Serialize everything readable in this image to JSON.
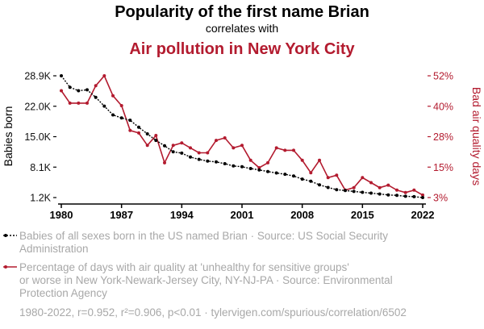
{
  "chart_data": {
    "type": "line",
    "title": "Popularity of the first name Brian",
    "subtitle": "correlates with",
    "title2": "Air pollution in New York City",
    "x": [
      1980,
      1981,
      1982,
      1983,
      1984,
      1985,
      1986,
      1987,
      1988,
      1989,
      1990,
      1991,
      1992,
      1993,
      1994,
      1995,
      1996,
      1997,
      1998,
      1999,
      2000,
      2001,
      2002,
      2003,
      2004,
      2005,
      2006,
      2007,
      2008,
      2009,
      2010,
      2011,
      2012,
      2013,
      2014,
      2015,
      2016,
      2017,
      2018,
      2019,
      2020,
      2021,
      2022
    ],
    "xlim": [
      1980,
      2022
    ],
    "xticks": [
      1980,
      1987,
      1994,
      2001,
      2008,
      2015,
      2022
    ],
    "series": [
      {
        "name": "Babies of all sexes born in the US named Brian",
        "axis": "left",
        "color": "#000000",
        "style": "dotted",
        "values": [
          28900,
          26300,
          25500,
          25700,
          24000,
          22000,
          20000,
          19300,
          18800,
          17200,
          15700,
          14200,
          13000,
          11600,
          11300,
          10400,
          9900,
          9500,
          9300,
          8900,
          8400,
          8200,
          7800,
          7500,
          7100,
          6800,
          6500,
          6100,
          5400,
          4900,
          4100,
          3500,
          3000,
          2800,
          2600,
          2400,
          2200,
          2000,
          1800,
          1700,
          1500,
          1400,
          1200
        ]
      },
      {
        "name": "Percentage of days with air quality at 'unhealthy for sensitive groups' or worse in New York-Newark-Jersey City, NY-NJ-PA",
        "axis": "right",
        "color": "#b31b2f",
        "style": "solid",
        "values": [
          46,
          41,
          41,
          41,
          48,
          52,
          44,
          40,
          30,
          29,
          24,
          28,
          17,
          24,
          25,
          23,
          21,
          21,
          26,
          27,
          23,
          24,
          18,
          15,
          17,
          23,
          22,
          22,
          18,
          13,
          18,
          11,
          12,
          6,
          7,
          11,
          9,
          7,
          8,
          6,
          5,
          6,
          4
        ]
      }
    ],
    "ylabel_left": "Babies born",
    "ylabel_right": "Bad air quality days",
    "ylim_left": [
      1200,
      28900
    ],
    "ylim_right": [
      3,
      52
    ],
    "yticks_left": [
      "1.2K",
      "8.1K",
      "15.0K",
      "22.0K",
      "28.9K"
    ],
    "yticks_right": [
      "3%",
      "15%",
      "28%",
      "40%",
      "52%"
    ],
    "legend": [
      {
        "text": "Babies of all sexes born in the US named Brian · Source: US Social Security Administration"
      },
      {
        "text": "Percentage of days with air quality at 'unhealthy for sensitive groups' or worse in New York-Newark-Jersey City, NY-NJ-PA · Source: Environmental Protection Agency"
      }
    ],
    "footer": "1980-2022, r=0.952, r²=0.906, p<0.01 · tylervigen.com/spurious/correlation/6502"
  }
}
